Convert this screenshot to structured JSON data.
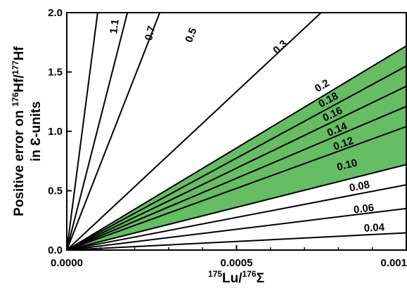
{
  "chart_data": {
    "type": "line",
    "xlim": [
      0,
      0.001
    ],
    "ylim": [
      0,
      2.0
    ],
    "x_ticks": [
      {
        "value": 0,
        "label": "0.0000"
      },
      {
        "value": 0.0005,
        "label": "0.0005"
      },
      {
        "value": 0.001,
        "label": "0.001"
      }
    ],
    "y_ticks": [
      {
        "value": 0,
        "label": "0.0"
      },
      {
        "value": 0.5,
        "label": "0.5"
      },
      {
        "value": 1.0,
        "label": "1.0"
      },
      {
        "value": 1.5,
        "label": "1.5"
      },
      {
        "value": 2.0,
        "label": "2.0"
      }
    ],
    "xlabel": {
      "sup1": "175",
      "base1": "Lu/",
      "sup2": "176",
      "base2": "Σ"
    },
    "ylabel": {
      "line1_prefix": "Positive error on ",
      "sup1": "176",
      "mid": "Hf/",
      "sup2": "177",
      "suffix": "Hf",
      "line2": "in Ɛ-units"
    },
    "series": [
      {
        "label": "1.1",
        "slope": 22000.0,
        "label_x": 0.00015,
        "label_y": 1.88
      },
      {
        "label": "0.7",
        "slope": 11200.0,
        "label_x": 0.000255,
        "label_y": 1.82
      },
      {
        "label": "0.5",
        "slope": 7300.0,
        "label_x": 0.000375,
        "label_y": 1.8
      },
      {
        "label": "0.3",
        "slope": 2670.0,
        "label_x": 0.000635,
        "label_y": 1.69
      },
      {
        "label": "0.2",
        "slope": 1720.0,
        "label_x": 0.000757,
        "label_y": 1.36
      },
      {
        "label": "0.18",
        "slope": 1550.0,
        "label_x": 0.000775,
        "label_y": 1.24
      },
      {
        "label": "0.16",
        "slope": 1380.0,
        "label_x": 0.000787,
        "label_y": 1.12
      },
      {
        "label": "0.14",
        "slope": 1210.0,
        "label_x": 0.0008,
        "label_y": 0.99
      },
      {
        "label": "0.12",
        "slope": 1040.0,
        "label_x": 0.000818,
        "label_y": 0.87
      },
      {
        "label": "0.10",
        "slope": 720.0,
        "label_x": 0.000828,
        "label_y": 0.69
      },
      {
        "label": "0.08",
        "slope": 550.0,
        "label_x": 0.000864,
        "label_y": 0.51
      },
      {
        "label": "0.06",
        "slope": 350.0,
        "label_x": 0.000876,
        "label_y": 0.32
      },
      {
        "label": "0.04",
        "slope": 145.0,
        "label_x": 0.000906,
        "label_y": 0.16
      }
    ],
    "shaded_band": {
      "from_label": "0.10",
      "to_label": "0.2",
      "color": "#66bd63"
    },
    "grid": false
  }
}
